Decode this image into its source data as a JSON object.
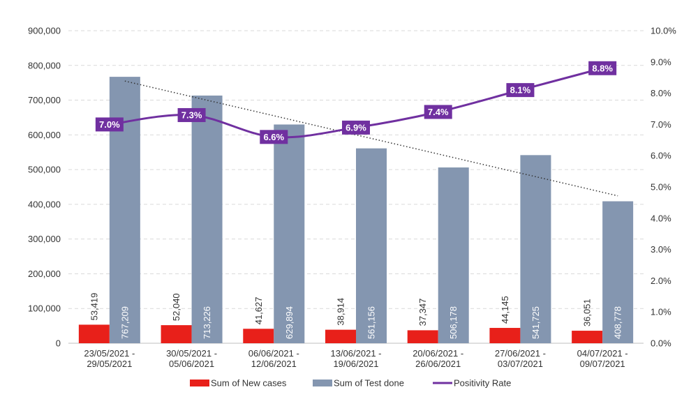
{
  "chart_data": {
    "type": "bar",
    "categories": [
      [
        "23/05/2021 -",
        "29/05/2021"
      ],
      [
        "30/05/2021 -",
        "05/06/2021"
      ],
      [
        "06/06/2021 -",
        "12/06/2021"
      ],
      [
        "13/06/2021 -",
        "19/06/2021"
      ],
      [
        "20/06/2021 -",
        "26/06/2021"
      ],
      [
        "27/06/2021 -",
        "03/07/2021"
      ],
      [
        "04/07/2021 -",
        "09/07/2021"
      ]
    ],
    "series": [
      {
        "name": "Sum of New cases",
        "axis": "left",
        "color": "#e8201a",
        "values": [
          53419,
          52040,
          41627,
          38914,
          37347,
          44145,
          36051
        ],
        "labels": [
          "53,419",
          "52,040",
          "41,627",
          "38,914",
          "37,347",
          "44,145",
          "36,051"
        ]
      },
      {
        "name": "Sum of Test done",
        "axis": "left",
        "color": "#8496b0",
        "values": [
          767209,
          713226,
          629894,
          561156,
          506178,
          541725,
          408778
        ],
        "labels": [
          "767,209",
          "713,226",
          "629,894",
          "561,156",
          "506,178",
          "541,725",
          "408,778"
        ]
      },
      {
        "name": "Positivity Rate",
        "axis": "right",
        "type": "line",
        "color": "#7030a0",
        "values": [
          7.0,
          7.3,
          6.6,
          6.9,
          7.4,
          8.1,
          8.8
        ],
        "labels": [
          "7.0%",
          "7.3%",
          "6.6%",
          "6.9%",
          "7.4%",
          "8.1%",
          "8.8%"
        ]
      }
    ],
    "trendline": {
      "of": "Sum of Test done",
      "style": "dotted",
      "color": "#333333"
    },
    "left_axis": {
      "ylim": [
        0,
        900000
      ],
      "ticks": [
        "0",
        "100,000",
        "200,000",
        "300,000",
        "400,000",
        "500,000",
        "600,000",
        "700,000",
        "800,000",
        "900,000"
      ]
    },
    "right_axis": {
      "ylim": [
        0,
        10
      ],
      "ticks": [
        "0.0%",
        "1.0%",
        "2.0%",
        "3.0%",
        "4.0%",
        "5.0%",
        "6.0%",
        "7.0%",
        "8.0%",
        "9.0%",
        "10.0%"
      ]
    },
    "grid": "horizontal dashed",
    "legend": "bottom",
    "title": "",
    "xlabel": "",
    "ylabel": ""
  }
}
